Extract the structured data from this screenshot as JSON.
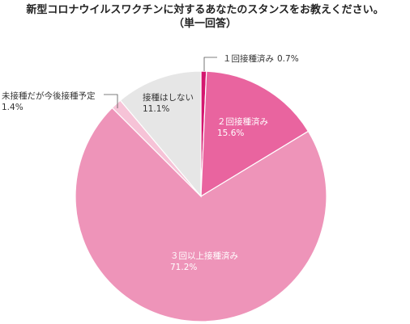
{
  "chart_data": {
    "type": "pie",
    "title": "新型コロナウイルスワクチンに対するあなたのスタンスをお教えください。",
    "subtitle": "（単一回答）",
    "start_angle": "12 o'clock",
    "direction": "clockwise",
    "slices": [
      {
        "label": "１回接種済み",
        "value": 0.7,
        "value_text": "0.7%",
        "color": "#d4176f",
        "label_color": "#333333"
      },
      {
        "label": "２回接種済み",
        "value": 15.6,
        "value_text": "15.6%",
        "color": "#e9649f",
        "label_color": "#ffffff"
      },
      {
        "label": "３回以上接種済み",
        "value": 71.2,
        "value_text": "71.2%",
        "color": "#ee94b9",
        "label_color": "#ffffff"
      },
      {
        "label": "未接種だが今後接種予定",
        "value": 1.4,
        "value_text": "1.4%",
        "color": "#f6c3d7",
        "label_color": "#333333"
      },
      {
        "label": "接種はしない",
        "value": 11.1,
        "value_text": "11.1%",
        "color": "#e6e6e6",
        "label_color": "#333333"
      }
    ]
  }
}
